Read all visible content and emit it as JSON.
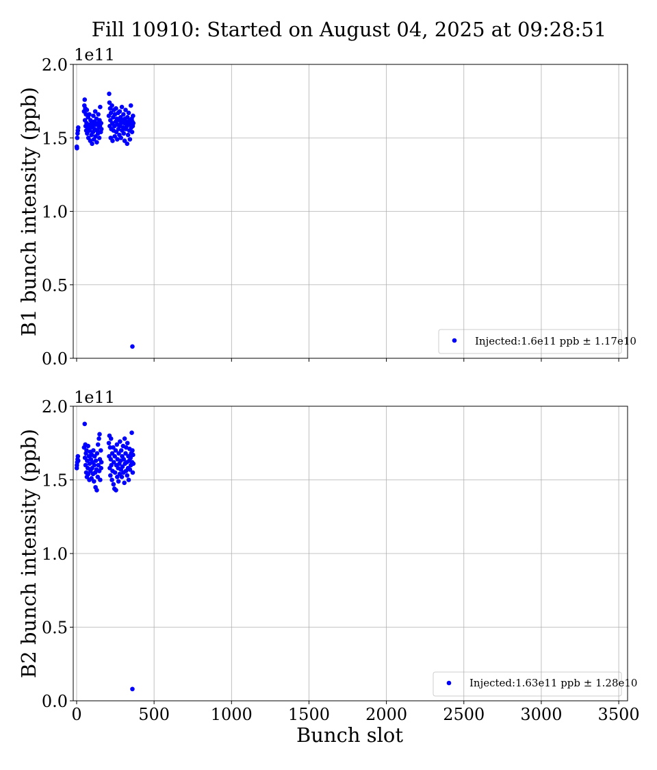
{
  "chart_data": [
    {
      "type": "scatter",
      "title": "Fill 10910: Started on August 04, 2025 at 09:28:51",
      "ylabel": "B1 bunch intensity (ppb)",
      "xlabel": "",
      "offset_label": "1e11",
      "xlim": [
        -22,
        3557
      ],
      "ylim": [
        0,
        2.0
      ],
      "xticks": [
        "0",
        "500",
        "1000",
        "1500",
        "2000",
        "2500",
        "3000",
        "3500"
      ],
      "yticks": [
        "0.0",
        "0.5",
        "1.0",
        "1.5",
        "2.0"
      ],
      "grid": true,
      "legend_position": "lower-right",
      "legend": "Injected:1.6e11 ppb ± 1.17e10",
      "color": "#0000ff",
      "points": [
        [
          1,
          1.44
        ],
        [
          2,
          1.43
        ],
        [
          4,
          1.5
        ],
        [
          6,
          1.53
        ],
        [
          8,
          1.55
        ],
        [
          10,
          1.57
        ],
        [
          48,
          1.68
        ],
        [
          50,
          1.72
        ],
        [
          52,
          1.76
        ],
        [
          54,
          1.62
        ],
        [
          56,
          1.7
        ],
        [
          58,
          1.58
        ],
        [
          60,
          1.66
        ],
        [
          62,
          1.55
        ],
        [
          64,
          1.6
        ],
        [
          66,
          1.69
        ],
        [
          68,
          1.53
        ],
        [
          72,
          1.57
        ],
        [
          74,
          1.64
        ],
        [
          76,
          1.5
        ],
        [
          80,
          1.59
        ],
        [
          82,
          1.66
        ],
        [
          84,
          1.55
        ],
        [
          88,
          1.48
        ],
        [
          90,
          1.62
        ],
        [
          92,
          1.57
        ],
        [
          96,
          1.52
        ],
        [
          98,
          1.6
        ],
        [
          100,
          1.46
        ],
        [
          104,
          1.58
        ],
        [
          106,
          1.54
        ],
        [
          108,
          1.65
        ],
        [
          112,
          1.49
        ],
        [
          114,
          1.61
        ],
        [
          116,
          1.56
        ],
        [
          120,
          1.68
        ],
        [
          122,
          1.51
        ],
        [
          124,
          1.59
        ],
        [
          128,
          1.63
        ],
        [
          130,
          1.47
        ],
        [
          132,
          1.55
        ],
        [
          136,
          1.6
        ],
        [
          138,
          1.53
        ],
        [
          140,
          1.66
        ],
        [
          144,
          1.57
        ],
        [
          146,
          1.5
        ],
        [
          148,
          1.62
        ],
        [
          150,
          1.58
        ],
        [
          152,
          1.71
        ],
        [
          156,
          1.54
        ],
        [
          158,
          1.6
        ],
        [
          160,
          1.56
        ],
        [
          208,
          1.65
        ],
        [
          210,
          1.8
        ],
        [
          212,
          1.74
        ],
        [
          214,
          1.58
        ],
        [
          216,
          1.7
        ],
        [
          218,
          1.62
        ],
        [
          220,
          1.5
        ],
        [
          222,
          1.67
        ],
        [
          224,
          1.56
        ],
        [
          228,
          1.72
        ],
        [
          230,
          1.6
        ],
        [
          232,
          1.48
        ],
        [
          236,
          1.64
        ],
        [
          238,
          1.55
        ],
        [
          240,
          1.69
        ],
        [
          244,
          1.58
        ],
        [
          246,
          1.51
        ],
        [
          248,
          1.66
        ],
        [
          252,
          1.61
        ],
        [
          254,
          1.7
        ],
        [
          256,
          1.54
        ],
        [
          260,
          1.63
        ],
        [
          262,
          1.49
        ],
        [
          264,
          1.59
        ],
        [
          268,
          1.67
        ],
        [
          270,
          1.56
        ],
        [
          272,
          1.62
        ],
        [
          276,
          1.52
        ],
        [
          278,
          1.68
        ],
        [
          280,
          1.58
        ],
        [
          284,
          1.64
        ],
        [
          286,
          1.5
        ],
        [
          288,
          1.6
        ],
        [
          292,
          1.71
        ],
        [
          294,
          1.55
        ],
        [
          296,
          1.62
        ],
        [
          300,
          1.57
        ],
        [
          302,
          1.66
        ],
        [
          304,
          1.53
        ],
        [
          308,
          1.6
        ],
        [
          310,
          1.48
        ],
        [
          312,
          1.63
        ],
        [
          316,
          1.69
        ],
        [
          318,
          1.56
        ],
        [
          320,
          1.61
        ],
        [
          324,
          1.58
        ],
        [
          326,
          1.46
        ],
        [
          328,
          1.64
        ],
        [
          332,
          1.52
        ],
        [
          334,
          1.6
        ],
        [
          336,
          1.67
        ],
        [
          340,
          1.55
        ],
        [
          342,
          1.62
        ],
        [
          344,
          1.49
        ],
        [
          348,
          1.59
        ],
        [
          350,
          1.72
        ],
        [
          352,
          1.57
        ],
        [
          356,
          1.63
        ],
        [
          358,
          1.54
        ],
        [
          360,
          1.61
        ],
        [
          362,
          1.58
        ],
        [
          364,
          1.65
        ],
        [
          366,
          1.6
        ],
        [
          360,
          0.08
        ]
      ]
    },
    {
      "type": "scatter",
      "ylabel": "B2 bunch intensity (ppb)",
      "xlabel": "Bunch slot",
      "offset_label": "1e11",
      "xlim": [
        -22,
        3557
      ],
      "ylim": [
        0,
        2.0
      ],
      "xticks": [
        "0",
        "500",
        "1000",
        "1500",
        "2000",
        "2500",
        "3000",
        "3500"
      ],
      "yticks": [
        "0.0",
        "0.5",
        "1.0",
        "1.5",
        "2.0"
      ],
      "grid": true,
      "legend_position": "lower-right",
      "legend": "Injected:1.63e11 ppb ± 1.28e10",
      "color": "#0000ff",
      "points": [
        [
          1,
          1.58
        ],
        [
          2,
          1.6
        ],
        [
          4,
          1.62
        ],
        [
          6,
          1.64
        ],
        [
          8,
          1.66
        ],
        [
          10,
          1.63
        ],
        [
          48,
          1.72
        ],
        [
          52,
          1.88
        ],
        [
          54,
          1.65
        ],
        [
          56,
          1.74
        ],
        [
          58,
          1.6
        ],
        [
          60,
          1.68
        ],
        [
          62,
          1.55
        ],
        [
          64,
          1.7
        ],
        [
          66,
          1.52
        ],
        [
          68,
          1.63
        ],
        [
          72,
          1.58
        ],
        [
          74,
          1.73
        ],
        [
          76,
          1.54
        ],
        [
          80,
          1.66
        ],
        [
          82,
          1.5
        ],
        [
          84,
          1.61
        ],
        [
          88,
          1.69
        ],
        [
          90,
          1.56
        ],
        [
          92,
          1.64
        ],
        [
          96,
          1.51
        ],
        [
          98,
          1.67
        ],
        [
          100,
          1.58
        ],
        [
          104,
          1.62
        ],
        [
          106,
          1.54
        ],
        [
          108,
          1.7
        ],
        [
          112,
          1.49
        ],
        [
          114,
          1.6
        ],
        [
          116,
          1.66
        ],
        [
          120,
          1.55
        ],
        [
          122,
          1.45
        ],
        [
          124,
          1.63
        ],
        [
          128,
          1.57
        ],
        [
          130,
          1.43
        ],
        [
          132,
          1.68
        ],
        [
          136,
          1.52
        ],
        [
          138,
          1.74
        ],
        [
          140,
          1.6
        ],
        [
          144,
          1.78
        ],
        [
          146,
          1.56
        ],
        [
          148,
          1.81
        ],
        [
          150,
          1.64
        ],
        [
          152,
          1.5
        ],
        [
          156,
          1.7
        ],
        [
          158,
          1.58
        ],
        [
          160,
          1.62
        ],
        [
          208,
          1.75
        ],
        [
          210,
          1.66
        ],
        [
          212,
          1.8
        ],
        [
          214,
          1.58
        ],
        [
          216,
          1.72
        ],
        [
          218,
          1.53
        ],
        [
          220,
          1.64
        ],
        [
          222,
          1.78
        ],
        [
          224,
          1.6
        ],
        [
          228,
          1.5
        ],
        [
          230,
          1.68
        ],
        [
          232,
          1.56
        ],
        [
          236,
          1.72
        ],
        [
          238,
          1.47
        ],
        [
          240,
          1.62
        ],
        [
          244,
          1.44
        ],
        [
          246,
          1.66
        ],
        [
          248,
          1.55
        ],
        [
          252,
          1.7
        ],
        [
          254,
          1.43
        ],
        [
          256,
          1.6
        ],
        [
          260,
          1.74
        ],
        [
          262,
          1.52
        ],
        [
          264,
          1.64
        ],
        [
          268,
          1.58
        ],
        [
          270,
          1.49
        ],
        [
          272,
          1.68
        ],
        [
          276,
          1.61
        ],
        [
          278,
          1.54
        ],
        [
          280,
          1.76
        ],
        [
          284,
          1.63
        ],
        [
          286,
          1.57
        ],
        [
          288,
          1.7
        ],
        [
          292,
          1.52
        ],
        [
          294,
          1.66
        ],
        [
          296,
          1.59
        ],
        [
          300,
          1.73
        ],
        [
          302,
          1.55
        ],
        [
          304,
          1.64
        ],
        [
          308,
          1.48
        ],
        [
          310,
          1.78
        ],
        [
          312,
          1.61
        ],
        [
          316,
          1.68
        ],
        [
          318,
          1.56
        ],
        [
          320,
          1.72
        ],
        [
          324,
          1.62
        ],
        [
          326,
          1.53
        ],
        [
          328,
          1.75
        ],
        [
          332,
          1.58
        ],
        [
          334,
          1.66
        ],
        [
          336,
          1.5
        ],
        [
          340,
          1.63
        ],
        [
          342,
          1.71
        ],
        [
          344,
          1.57
        ],
        [
          348,
          1.65
        ],
        [
          350,
          1.6
        ],
        [
          352,
          1.68
        ],
        [
          356,
          1.82
        ],
        [
          358,
          1.62
        ],
        [
          360,
          1.7
        ],
        [
          362,
          1.55
        ],
        [
          364,
          1.67
        ],
        [
          366,
          1.61
        ],
        [
          360,
          0.08
        ]
      ]
    }
  ]
}
